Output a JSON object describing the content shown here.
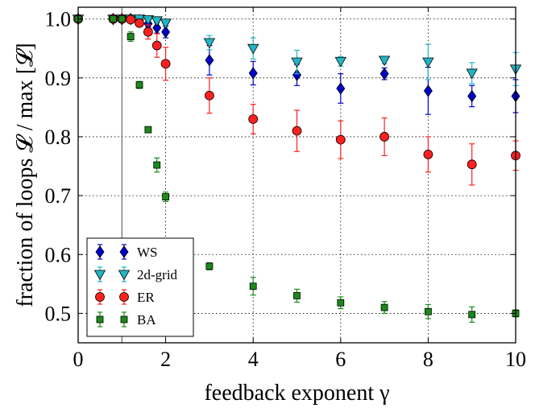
{
  "chart_data": {
    "type": "scatter",
    "title": "",
    "xlabel": "feedback exponent γ",
    "ylabel": "fraction of loops 𝓛 / max [𝓛]",
    "xlim": [
      0,
      10
    ],
    "ylim": [
      0.45,
      1.02
    ],
    "xticks": [
      "0",
      "2",
      "4",
      "6",
      "8",
      "10"
    ],
    "yticks": [
      "0.5",
      "0.6",
      "0.7",
      "0.8",
      "0.9",
      "1.0"
    ],
    "grid": true,
    "vline_x": 1,
    "legend_position": "lower-left",
    "series": [
      {
        "name": "WS",
        "marker": "diamond",
        "color": "#0000cc",
        "x": [
          0,
          0.8,
          1.0,
          1.2,
          1.4,
          1.6,
          1.8,
          2,
          3,
          4,
          5,
          6,
          7,
          8,
          9,
          10
        ],
        "y": [
          1.0,
          1.0,
          1.0,
          1.0,
          0.998,
          0.992,
          0.985,
          0.978,
          0.93,
          0.908,
          0.905,
          0.882,
          0.907,
          0.878,
          0.869,
          0.869
        ],
        "err": [
          0.002,
          0.002,
          0.002,
          0.002,
          0.004,
          0.006,
          0.009,
          0.01,
          0.025,
          0.02,
          0.018,
          0.025,
          0.01,
          0.04,
          0.018,
          0.028
        ]
      },
      {
        "name": "2d-grid",
        "marker": "triangle-down",
        "color": "#22b5c4",
        "x": [
          0,
          0.8,
          1.0,
          1.2,
          1.4,
          1.6,
          1.8,
          2,
          3,
          4,
          5,
          6,
          7,
          8,
          9,
          10
        ],
        "y": [
          1.0,
          1.0,
          1.0,
          1.0,
          1.0,
          0.999,
          0.997,
          0.993,
          0.96,
          0.95,
          0.927,
          0.928,
          0.93,
          0.927,
          0.908,
          0.915
        ],
        "err": [
          0.002,
          0.002,
          0.002,
          0.002,
          0.002,
          0.003,
          0.004,
          0.006,
          0.012,
          0.018,
          0.02,
          0.008,
          0.006,
          0.03,
          0.018,
          0.028
        ]
      },
      {
        "name": "ER",
        "marker": "circle",
        "color": "#ff2020",
        "x": [
          0,
          0.8,
          1.0,
          1.2,
          1.4,
          1.6,
          1.8,
          2,
          3,
          4,
          5,
          6,
          7,
          8,
          9,
          10
        ],
        "y": [
          1.0,
          1.0,
          1.0,
          0.999,
          0.993,
          0.978,
          0.955,
          0.924,
          0.87,
          0.83,
          0.81,
          0.795,
          0.8,
          0.77,
          0.753,
          0.768
        ],
        "err": [
          0.002,
          0.002,
          0.002,
          0.003,
          0.006,
          0.012,
          0.02,
          0.028,
          0.03,
          0.025,
          0.035,
          0.032,
          0.032,
          0.03,
          0.035,
          0.025
        ]
      },
      {
        "name": "BA",
        "marker": "square",
        "color": "#1a8a1a",
        "x": [
          0,
          0.8,
          1.0,
          1.2,
          1.4,
          1.6,
          1.8,
          2,
          3,
          4,
          5,
          6,
          7,
          8,
          9,
          10
        ],
        "y": [
          1.0,
          1.0,
          1.0,
          0.97,
          0.888,
          0.812,
          0.752,
          0.698,
          0.58,
          0.546,
          0.53,
          0.518,
          0.51,
          0.503,
          0.498,
          0.5
        ],
        "err": [
          0.002,
          0.003,
          0.003,
          0.008,
          0.006,
          0.005,
          0.012,
          0.008,
          0.006,
          0.015,
          0.011,
          0.01,
          0.01,
          0.012,
          0.013,
          0.006
        ]
      }
    ]
  }
}
